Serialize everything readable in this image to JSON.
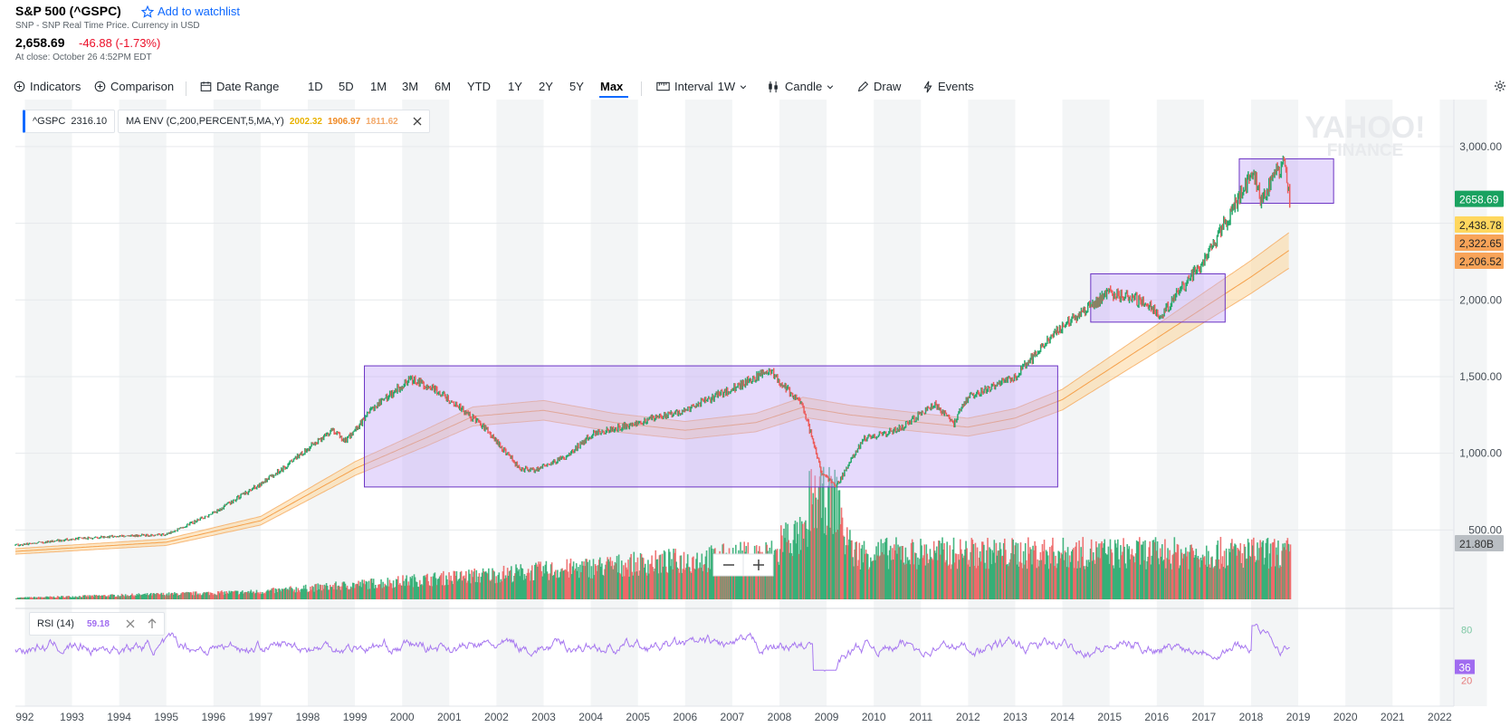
{
  "header": {
    "title": "S&P 500 (^GSPC)",
    "watchlist_label": "Add to watchlist",
    "subtitle": "SNP - SNP Real Time Price. Currency in USD",
    "price": "2,658.69",
    "change": "-46.88 (-1.73%)",
    "close_time": "At close: October 26 4:52PM EDT"
  },
  "toolbar": {
    "indicators": "Indicators",
    "comparison": "Comparison",
    "date_range": "Date Range",
    "ranges": [
      "1D",
      "5D",
      "1M",
      "3M",
      "6M",
      "YTD",
      "1Y",
      "2Y",
      "5Y",
      "Max"
    ],
    "active_range": "Max",
    "interval_label": "Interval",
    "interval_value": "1W",
    "chart_type": "Candle",
    "draw": "Draw",
    "events": "Events"
  },
  "legend": {
    "symbol": "^GSPC",
    "symbol_value": "2316.10",
    "ma_env": "MA ENV (C,200,PERCENT,5,MA,Y)",
    "ma_values": [
      "2002.32",
      "1906.97",
      "1811.62"
    ]
  },
  "watermark": {
    "line1": "YAHOO!",
    "line2": "FINANCE"
  },
  "rsi_legend": {
    "label": "RSI (14)",
    "value": "59.18"
  },
  "price_axis_labels": {
    "current": "2658.69",
    "upper": "2,438.78",
    "middle": "2,322.65",
    "lower": "2,206.52",
    "volume": "21.80B",
    "rsi": "36"
  },
  "colors": {
    "up": "#26a96c",
    "down": "#ec5d5d",
    "env_line": "#f5a04a",
    "env_fill": "#fbd59b",
    "rect_fill": "#c8aef8",
    "rect_stroke": "#6b33c4",
    "rsi_line": "#a778f0",
    "badge_green": "#1aa260",
    "badge_yellow": "#ffd75e",
    "badge_orange": "#f8a459",
    "badge_grey": "#b9bec3",
    "badge_purple": "#a06cf0",
    "accent_blue": "#0f69ff"
  },
  "chart_data": {
    "type": "line",
    "x_ticks": [
      "992",
      "1993",
      "1994",
      "1995",
      "1996",
      "1997",
      "1998",
      "1999",
      "2000",
      "2001",
      "2002",
      "2003",
      "2004",
      "2005",
      "2006",
      "2007",
      "2008",
      "2009",
      "2010",
      "2011",
      "2012",
      "2013",
      "2014",
      "2015",
      "2016",
      "2017",
      "2018",
      "2019",
      "2020",
      "2021",
      "2022"
    ],
    "y_ticks": [
      "3,000.00",
      "2,500.00",
      "2,000.00",
      "1,500.00",
      "1,000.00",
      "500.00"
    ],
    "rsi_ticks": [
      "80",
      "20"
    ],
    "price_series": {
      "x": [
        1991.8,
        1993,
        1994,
        1995,
        1996,
        1997,
        1997.6,
        1998.5,
        1998.8,
        1999.5,
        2000.2,
        2000.7,
        2001.7,
        2002.5,
        2002.8,
        2003.5,
        2004,
        2005,
        2006,
        2007,
        2007.8,
        2008.5,
        2008.9,
        2009.2,
        2009.8,
        2010.5,
        2011.3,
        2011.7,
        2012,
        2013,
        2014,
        2015,
        2015.7,
        2016.1,
        2016.7,
        2017,
        2018.05,
        2018.2,
        2018.7,
        2018.82
      ],
      "y": [
        400,
        440,
        460,
        470,
        610,
        800,
        930,
        1150,
        1080,
        1330,
        1480,
        1420,
        1180,
        900,
        890,
        980,
        1120,
        1200,
        1280,
        1420,
        1540,
        1300,
        870,
        780,
        1100,
        1150,
        1320,
        1200,
        1360,
        1500,
        1830,
        2050,
        1990,
        1900,
        2140,
        2250,
        2840,
        2650,
        2900,
        2658.69
      ]
    },
    "ma_env_series": {
      "x": [
        1991.8,
        1995,
        1997,
        1999,
        2000.5,
        2001.5,
        2003,
        2004.5,
        2006,
        2007.5,
        2008.5,
        2009.5,
        2011,
        2012,
        2013,
        2014,
        2015,
        2016,
        2017,
        2018,
        2018.8
      ],
      "y": [
        360,
        420,
        560,
        900,
        1100,
        1240,
        1280,
        1200,
        1150,
        1200,
        1300,
        1250,
        1200,
        1170,
        1230,
        1350,
        1550,
        1750,
        1950,
        2150,
        2322
      ]
    },
    "highlight_boxes": [
      {
        "x0": 1999.2,
        "x1": 2013.9,
        "y0": 780,
        "y1": 1570
      },
      {
        "x0": 2014.6,
        "x1": 2017.45,
        "y0": 1855,
        "y1": 2170
      },
      {
        "x0": 2017.75,
        "x1": 2019.75,
        "y0": 2630,
        "y1": 2920
      }
    ],
    "ylim": [
      0,
      3200
    ],
    "xlim": [
      1991.8,
      2022.3
    ],
    "grid": true,
    "legend_position": "top-left"
  }
}
